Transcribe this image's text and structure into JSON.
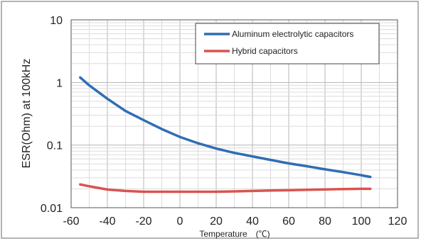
{
  "chart_data": {
    "type": "line",
    "xlabel": "Temperature　(℃)",
    "ylabel": "ESR(Ohm) at 100kHz",
    "xlim": [
      -60,
      120
    ],
    "ylim": [
      0.01,
      10
    ],
    "yscale": "log",
    "grid": true,
    "legend_position": "top-right",
    "x_ticks": [
      "-60",
      "-40",
      "-20",
      "0",
      "20",
      "40",
      "60",
      "80",
      "100",
      "120"
    ],
    "y_ticks": [
      "10",
      "1",
      "0.1",
      "0.01"
    ],
    "series": [
      {
        "name": "Aluminum electrolytic capacitors",
        "color": "#2f6db5",
        "x": [
          -55,
          -50,
          -40,
          -30,
          -20,
          -10,
          0,
          10,
          20,
          30,
          40,
          50,
          60,
          70,
          80,
          90,
          100,
          105
        ],
        "y": [
          1.2,
          0.9,
          0.55,
          0.35,
          0.25,
          0.18,
          0.135,
          0.107,
          0.088,
          0.075,
          0.066,
          0.058,
          0.051,
          0.046,
          0.041,
          0.037,
          0.033,
          0.031
        ]
      },
      {
        "name": "Hybrid capacitors",
        "color": "#d9534f",
        "x": [
          -55,
          -50,
          -40,
          -30,
          -20,
          -10,
          0,
          10,
          20,
          30,
          40,
          50,
          60,
          70,
          80,
          90,
          100,
          105
        ],
        "y": [
          0.0235,
          0.022,
          0.0195,
          0.0185,
          0.018,
          0.018,
          0.018,
          0.018,
          0.018,
          0.0182,
          0.0185,
          0.0188,
          0.019,
          0.0193,
          0.0196,
          0.0198,
          0.02,
          0.02
        ]
      }
    ]
  }
}
